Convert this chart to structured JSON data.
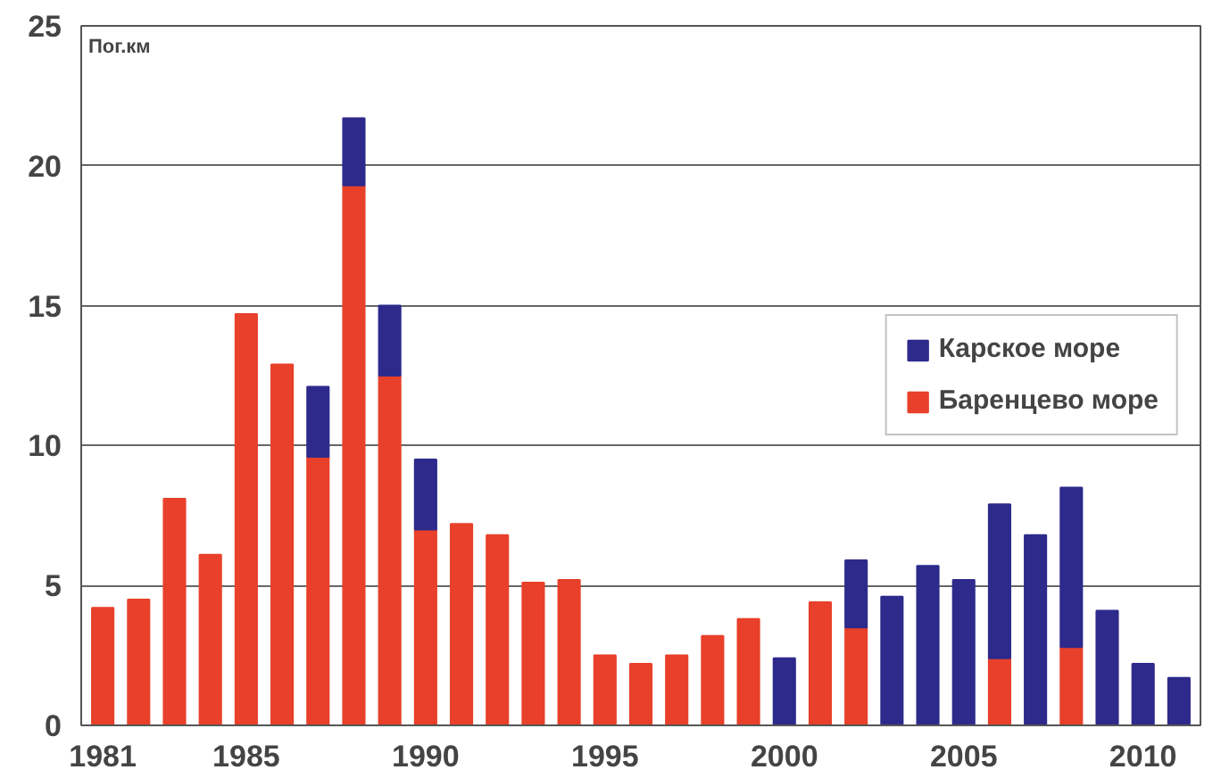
{
  "chart_data": {
    "type": "bar",
    "stacked": true,
    "ylabel": "Пог.км",
    "categories": [
      "1981",
      null,
      null,
      null,
      "1985",
      null,
      null,
      null,
      null,
      "1990",
      null,
      null,
      null,
      null,
      "1995",
      null,
      null,
      null,
      null,
      "2000",
      null,
      null,
      null,
      null,
      "2005",
      null,
      null,
      null,
      null,
      "2010",
      null
    ],
    "series": [
      {
        "name": "Баренцево море",
        "color": "#e8402a",
        "values": [
          4.2,
          4.5,
          8.1,
          6.1,
          14.7,
          12.9,
          9.6,
          19.3,
          12.5,
          7.0,
          7.2,
          6.8,
          5.1,
          5.2,
          2.5,
          2.2,
          2.5,
          3.2,
          3.8,
          null,
          4.4,
          3.5,
          null,
          null,
          null,
          2.4,
          null,
          2.8,
          null,
          null,
          null
        ]
      },
      {
        "name": "Карское море",
        "color": "#2e2a8c",
        "values": [
          null,
          null,
          null,
          null,
          null,
          null,
          2.5,
          2.4,
          2.5,
          2.5,
          null,
          null,
          null,
          null,
          null,
          null,
          null,
          null,
          null,
          2.4,
          null,
          2.4,
          4.6,
          5.7,
          5.2,
          5.5,
          6.8,
          5.7,
          4.1,
          2.2,
          1.7
        ]
      }
    ],
    "ylim": [
      0,
      25
    ],
    "yticks": [
      0,
      5,
      10,
      15,
      20,
      25
    ],
    "grid": "y",
    "legend": "right"
  }
}
